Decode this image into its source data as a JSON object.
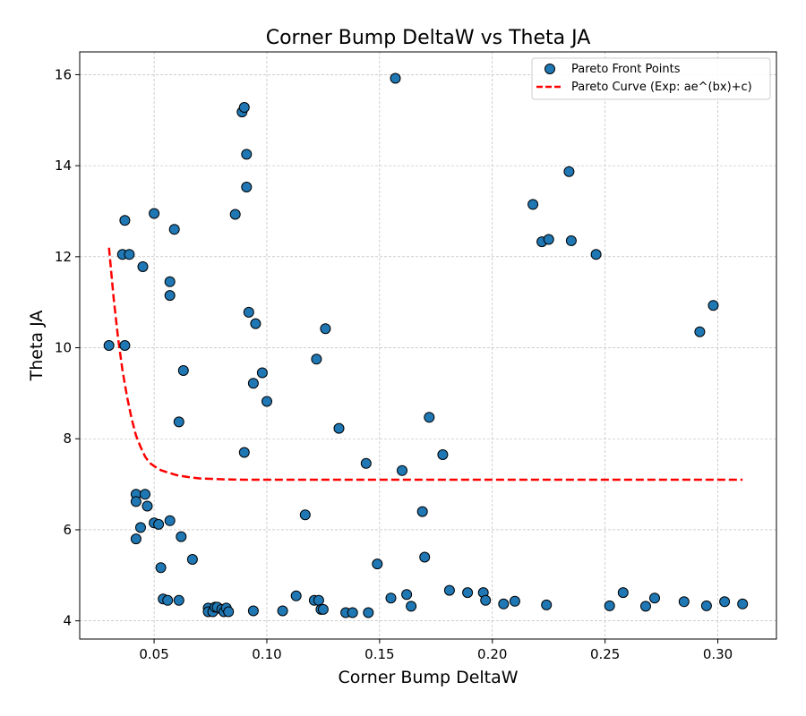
{
  "chart_data": {
    "type": "scatter",
    "title": "Corner Bump DeltaW vs Theta JA",
    "xlabel": "Corner Bump DeltaW",
    "ylabel": "Theta JA",
    "xlim": [
      0.017,
      0.326
    ],
    "ylim": [
      3.6,
      16.5
    ],
    "xticks": [
      0.05,
      0.1,
      0.15,
      0.2,
      0.25,
      0.3
    ],
    "xtick_labels": [
      "0.05",
      "0.10",
      "0.15",
      "0.20",
      "0.25",
      "0.30"
    ],
    "yticks": [
      4,
      6,
      8,
      10,
      12,
      14,
      16
    ],
    "ytick_labels": [
      "4",
      "6",
      "8",
      "10",
      "12",
      "14",
      "16"
    ],
    "grid": true,
    "legend_position": "top-right",
    "colors": {
      "points": "#1f77b4",
      "curve": "#ff0000"
    },
    "series": [
      {
        "name": "Pareto Front Points",
        "kind": "scatter",
        "points": [
          [
            0.03,
            10.05
          ],
          [
            0.036,
            12.05
          ],
          [
            0.037,
            10.05
          ],
          [
            0.037,
            12.8
          ],
          [
            0.039,
            12.05
          ],
          [
            0.042,
            6.78
          ],
          [
            0.042,
            6.62
          ],
          [
            0.042,
            5.8
          ],
          [
            0.044,
            6.05
          ],
          [
            0.045,
            11.78
          ],
          [
            0.046,
            6.78
          ],
          [
            0.047,
            6.52
          ],
          [
            0.05,
            6.15
          ],
          [
            0.05,
            12.95
          ],
          [
            0.052,
            6.12
          ],
          [
            0.053,
            5.17
          ],
          [
            0.054,
            4.48
          ],
          [
            0.056,
            4.45
          ],
          [
            0.057,
            6.2
          ],
          [
            0.057,
            11.45
          ],
          [
            0.057,
            11.15
          ],
          [
            0.059,
            12.6
          ],
          [
            0.061,
            8.37
          ],
          [
            0.061,
            4.45
          ],
          [
            0.062,
            5.85
          ],
          [
            0.063,
            9.5
          ],
          [
            0.067,
            5.35
          ],
          [
            0.074,
            4.28
          ],
          [
            0.074,
            4.2
          ],
          [
            0.076,
            4.2
          ],
          [
            0.077,
            4.3
          ],
          [
            0.078,
            4.3
          ],
          [
            0.08,
            4.25
          ],
          [
            0.081,
            4.2
          ],
          [
            0.082,
            4.28
          ],
          [
            0.083,
            4.2
          ],
          [
            0.086,
            12.93
          ],
          [
            0.089,
            15.18
          ],
          [
            0.09,
            15.28
          ],
          [
            0.09,
            7.7
          ],
          [
            0.091,
            13.53
          ],
          [
            0.091,
            14.25
          ],
          [
            0.092,
            10.78
          ],
          [
            0.094,
            9.22
          ],
          [
            0.094,
            4.22
          ],
          [
            0.095,
            10.53
          ],
          [
            0.098,
            9.45
          ],
          [
            0.1,
            8.82
          ],
          [
            0.107,
            4.22
          ],
          [
            0.113,
            4.55
          ],
          [
            0.117,
            6.33
          ],
          [
            0.121,
            4.45
          ],
          [
            0.122,
            9.75
          ],
          [
            0.123,
            4.45
          ],
          [
            0.124,
            4.25
          ],
          [
            0.125,
            4.25
          ],
          [
            0.126,
            10.42
          ],
          [
            0.132,
            8.23
          ],
          [
            0.135,
            4.18
          ],
          [
            0.138,
            4.18
          ],
          [
            0.144,
            7.46
          ],
          [
            0.145,
            4.18
          ],
          [
            0.149,
            5.25
          ],
          [
            0.155,
            4.5
          ],
          [
            0.157,
            15.92
          ],
          [
            0.16,
            7.3
          ],
          [
            0.162,
            4.58
          ],
          [
            0.164,
            4.32
          ],
          [
            0.169,
            6.4
          ],
          [
            0.17,
            5.4
          ],
          [
            0.172,
            8.47
          ],
          [
            0.178,
            7.65
          ],
          [
            0.181,
            4.67
          ],
          [
            0.189,
            4.62
          ],
          [
            0.196,
            4.62
          ],
          [
            0.197,
            4.45
          ],
          [
            0.205,
            4.37
          ],
          [
            0.21,
            4.43
          ],
          [
            0.218,
            13.15
          ],
          [
            0.222,
            12.33
          ],
          [
            0.224,
            4.35
          ],
          [
            0.225,
            12.38
          ],
          [
            0.234,
            13.87
          ],
          [
            0.235,
            12.35
          ],
          [
            0.246,
            12.05
          ],
          [
            0.252,
            4.33
          ],
          [
            0.258,
            4.62
          ],
          [
            0.268,
            4.32
          ],
          [
            0.272,
            4.5
          ],
          [
            0.285,
            4.42
          ],
          [
            0.292,
            10.35
          ],
          [
            0.295,
            4.33
          ],
          [
            0.298,
            10.93
          ],
          [
            0.303,
            4.42
          ],
          [
            0.311,
            4.37
          ]
        ]
      },
      {
        "name": "Pareto Curve (Exp: ae^(bx)+c)",
        "kind": "line",
        "x": [
          0.03,
          0.032,
          0.034,
          0.036,
          0.038,
          0.04,
          0.042,
          0.044,
          0.046,
          0.048,
          0.05,
          0.053,
          0.056,
          0.06,
          0.065,
          0.07,
          0.075,
          0.08,
          0.09,
          0.1,
          0.12,
          0.15,
          0.2,
          0.25,
          0.311
        ],
        "y": [
          12.2,
          11.11,
          10.22,
          9.5,
          8.92,
          8.45,
          8.07,
          7.82,
          7.61,
          7.47,
          7.4,
          7.31,
          7.26,
          7.2,
          7.16,
          7.13,
          7.12,
          7.11,
          7.1,
          7.1,
          7.1,
          7.1,
          7.1,
          7.1,
          7.1
        ]
      }
    ]
  }
}
